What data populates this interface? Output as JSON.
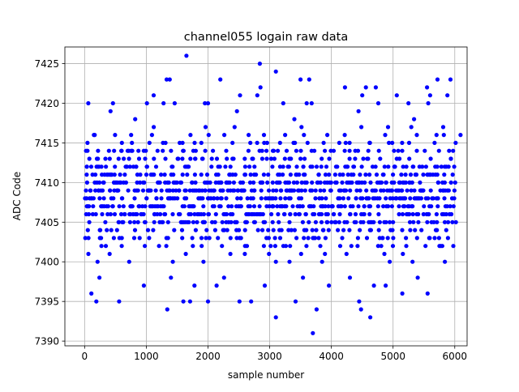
{
  "chart_data": {
    "type": "scatter",
    "title": "channel055 logain raw data",
    "xlabel": "sample number",
    "ylabel": "ADC Code",
    "xlim": [
      -320,
      6200
    ],
    "ylim": [
      7389.4,
      7427.1
    ],
    "xticks": [
      0,
      1000,
      2000,
      3000,
      4000,
      5000,
      6000
    ],
    "yticks": [
      7390,
      7395,
      7400,
      7405,
      7410,
      7415,
      7420,
      7425
    ],
    "grid": true,
    "marker_color": "#0000ff",
    "series": [
      {
        "n_samples": 6000,
        "dense_range": [
          7400,
          7417
        ],
        "outliers": [
          {
            "x": 1650,
            "y": 7426
          },
          {
            "x": 2840,
            "y": 7425
          },
          {
            "x": 3100,
            "y": 7424
          },
          {
            "x": 1330,
            "y": 7423
          },
          {
            "x": 1380,
            "y": 7423
          },
          {
            "x": 2200,
            "y": 7423
          },
          {
            "x": 3500,
            "y": 7423
          },
          {
            "x": 3640,
            "y": 7423
          },
          {
            "x": 5720,
            "y": 7423
          },
          {
            "x": 5930,
            "y": 7423
          },
          {
            "x": 2850,
            "y": 7422
          },
          {
            "x": 4220,
            "y": 7422
          },
          {
            "x": 4560,
            "y": 7422
          },
          {
            "x": 4720,
            "y": 7422
          },
          {
            "x": 5550,
            "y": 7422
          },
          {
            "x": 1120,
            "y": 7421
          },
          {
            "x": 2520,
            "y": 7421
          },
          {
            "x": 2800,
            "y": 7421
          },
          {
            "x": 4500,
            "y": 7421
          },
          {
            "x": 5060,
            "y": 7421
          },
          {
            "x": 5600,
            "y": 7421
          },
          {
            "x": 5880,
            "y": 7421
          },
          {
            "x": 60,
            "y": 7420
          },
          {
            "x": 460,
            "y": 7420
          },
          {
            "x": 1010,
            "y": 7420
          },
          {
            "x": 1280,
            "y": 7420
          },
          {
            "x": 1460,
            "y": 7420
          },
          {
            "x": 1950,
            "y": 7420
          },
          {
            "x": 2000,
            "y": 7420
          },
          {
            "x": 3220,
            "y": 7420
          },
          {
            "x": 3600,
            "y": 7420
          },
          {
            "x": 3680,
            "y": 7420
          },
          {
            "x": 4760,
            "y": 7420
          },
          {
            "x": 5250,
            "y": 7420
          },
          {
            "x": 5570,
            "y": 7420
          },
          {
            "x": 420,
            "y": 7419
          },
          {
            "x": 2470,
            "y": 7419
          },
          {
            "x": 4440,
            "y": 7419
          },
          {
            "x": 820,
            "y": 7418
          },
          {
            "x": 3400,
            "y": 7418
          },
          {
            "x": 5340,
            "y": 7418
          },
          {
            "x": 110,
            "y": 7396
          },
          {
            "x": 190,
            "y": 7395
          },
          {
            "x": 560,
            "y": 7395
          },
          {
            "x": 1340,
            "y": 7394
          },
          {
            "x": 1600,
            "y": 7395
          },
          {
            "x": 1710,
            "y": 7395
          },
          {
            "x": 2000,
            "y": 7395
          },
          {
            "x": 2510,
            "y": 7395
          },
          {
            "x": 2700,
            "y": 7395
          },
          {
            "x": 3100,
            "y": 7393
          },
          {
            "x": 3420,
            "y": 7395
          },
          {
            "x": 3700,
            "y": 7391
          },
          {
            "x": 3760,
            "y": 7394
          },
          {
            "x": 4450,
            "y": 7395
          },
          {
            "x": 4480,
            "y": 7394
          },
          {
            "x": 4630,
            "y": 7393
          },
          {
            "x": 5150,
            "y": 7396
          },
          {
            "x": 5560,
            "y": 7396
          },
          {
            "x": 960,
            "y": 7397
          },
          {
            "x": 1780,
            "y": 7397
          },
          {
            "x": 2920,
            "y": 7397
          },
          {
            "x": 3960,
            "y": 7397
          },
          {
            "x": 4880,
            "y": 7397
          },
          {
            "x": 240,
            "y": 7398
          },
          {
            "x": 1400,
            "y": 7398
          },
          {
            "x": 2260,
            "y": 7398
          },
          {
            "x": 3540,
            "y": 7398
          },
          {
            "x": 4300,
            "y": 7398
          },
          {
            "x": 5400,
            "y": 7398
          },
          {
            "x": 2140,
            "y": 7397
          },
          {
            "x": 4690,
            "y": 7397
          }
        ]
      }
    ]
  }
}
